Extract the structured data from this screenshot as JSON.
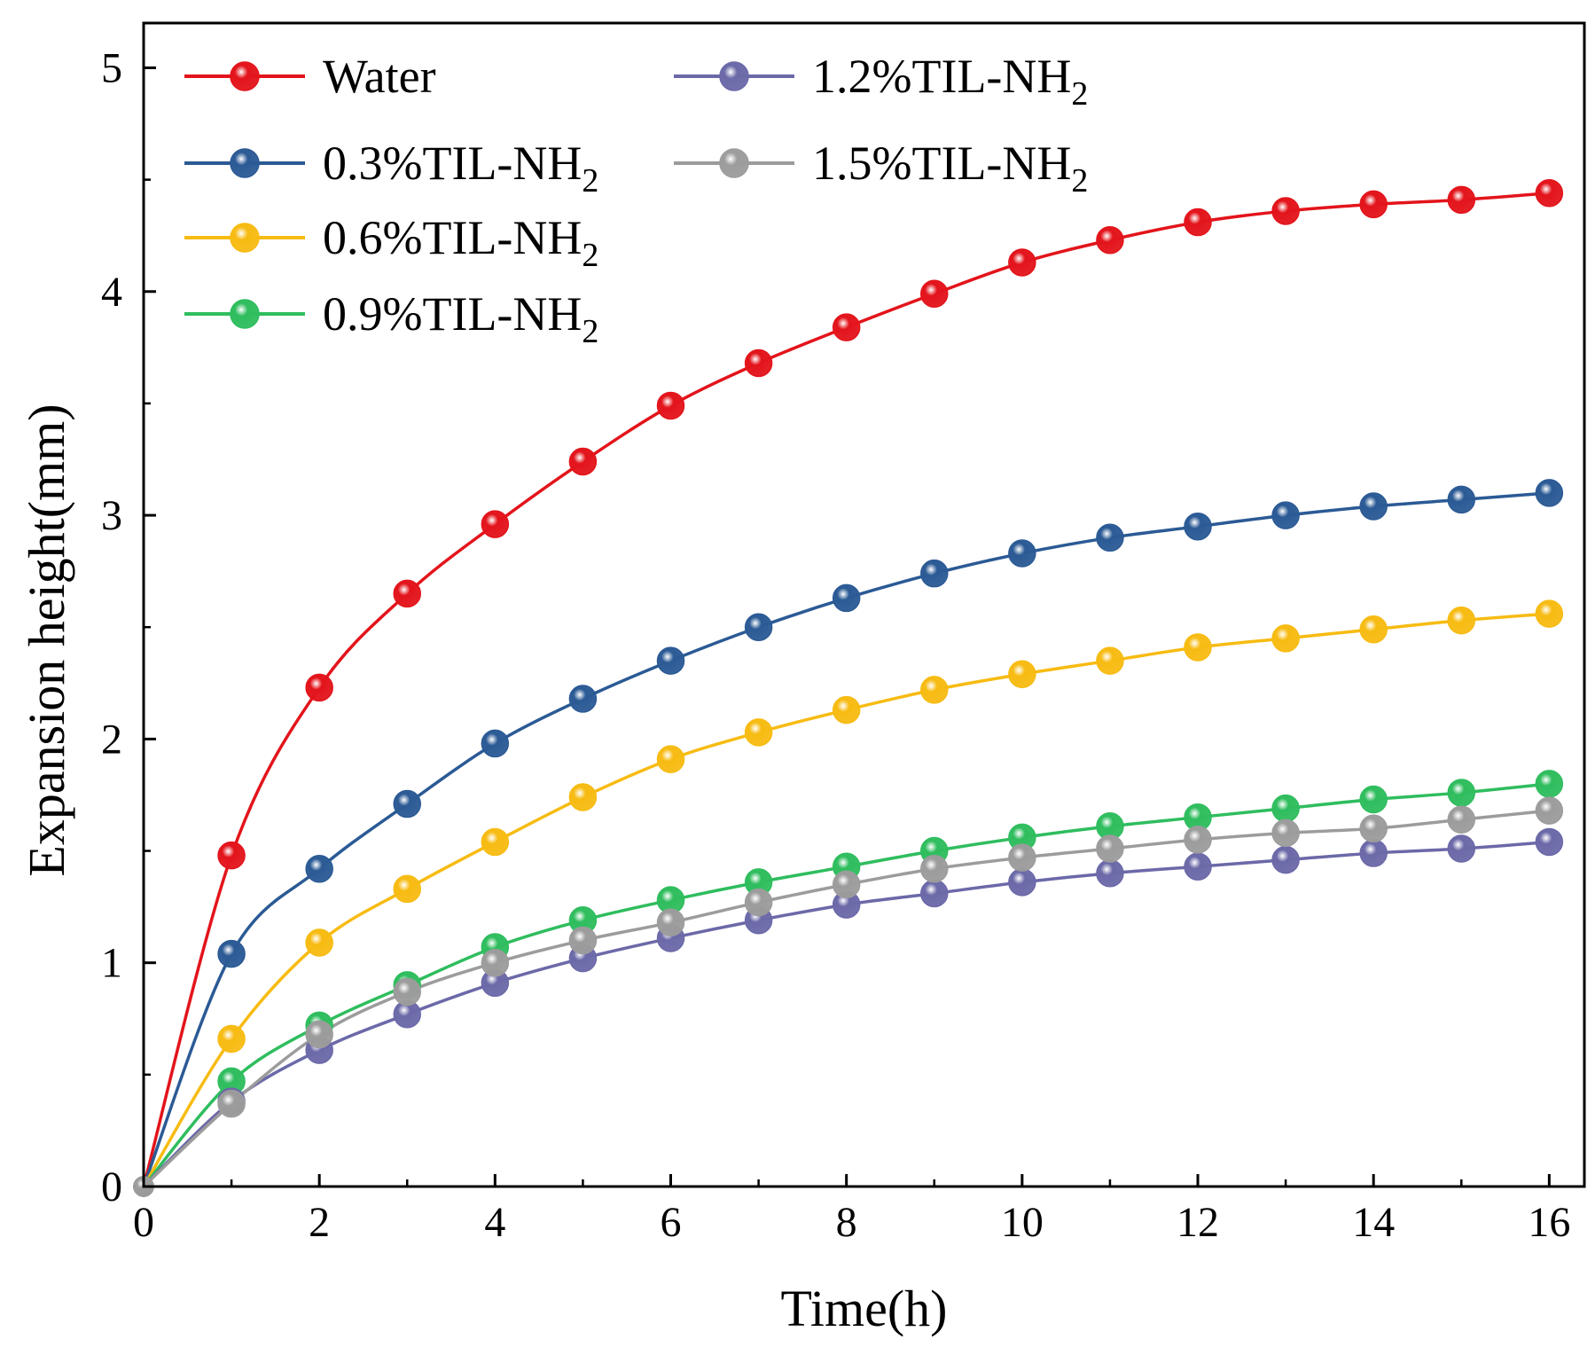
{
  "chart_data": {
    "type": "line",
    "title": "",
    "xlabel": "Time(h)",
    "ylabel": "Expansion height(mm)",
    "xlim": [
      0,
      16.4
    ],
    "ylim": [
      0,
      5.2
    ],
    "xticks": [
      0,
      2,
      4,
      6,
      8,
      10,
      12,
      14,
      16
    ],
    "yticks": [
      0,
      1,
      2,
      3,
      4,
      5
    ],
    "x": [
      0,
      1,
      2,
      3,
      4,
      5,
      6,
      7,
      8,
      9,
      10,
      11,
      12,
      13,
      14,
      15,
      16
    ],
    "legend_position": "top-left",
    "series": [
      {
        "name": "Water",
        "legend_main": "Water",
        "legend_sub": "",
        "color": "#e3141b",
        "values": [
          0,
          1.48,
          2.23,
          2.65,
          2.96,
          3.24,
          3.49,
          3.68,
          3.84,
          3.99,
          4.13,
          4.23,
          4.31,
          4.36,
          4.39,
          4.41,
          4.44
        ]
      },
      {
        "name": "0.3%TIL-NH2",
        "legend_main": "0.3%TIL-NH",
        "legend_sub": "2",
        "color": "#2b5a95",
        "values": [
          0,
          1.04,
          1.42,
          1.71,
          1.98,
          2.18,
          2.35,
          2.5,
          2.63,
          2.74,
          2.83,
          2.9,
          2.95,
          3.0,
          3.04,
          3.07,
          3.1
        ]
      },
      {
        "name": "0.6%TIL-NH2",
        "legend_main": "0.6%TIL-NH",
        "legend_sub": "2",
        "color": "#f7bb12",
        "values": [
          0,
          0.66,
          1.09,
          1.33,
          1.54,
          1.74,
          1.91,
          2.03,
          2.13,
          2.22,
          2.29,
          2.35,
          2.41,
          2.45,
          2.49,
          2.53,
          2.56
        ]
      },
      {
        "name": "0.9%TIL-NH2",
        "legend_main": "0.9%TIL-NH",
        "legend_sub": "2",
        "color": "#2fbd5e",
        "values": [
          0,
          0.47,
          0.72,
          0.9,
          1.07,
          1.19,
          1.28,
          1.36,
          1.43,
          1.5,
          1.56,
          1.61,
          1.65,
          1.69,
          1.73,
          1.76,
          1.8
        ]
      },
      {
        "name": "1.2%TIL-NH2",
        "legend_main": "1.2%TIL-NH",
        "legend_sub": "2",
        "color": "#6b69a8",
        "values": [
          0,
          0.38,
          0.61,
          0.77,
          0.91,
          1.02,
          1.11,
          1.19,
          1.26,
          1.31,
          1.36,
          1.4,
          1.43,
          1.46,
          1.49,
          1.51,
          1.54
        ]
      },
      {
        "name": "1.5%TIL-NH2",
        "legend_main": "1.5%TIL-NH",
        "legend_sub": "2",
        "color": "#9c9c9c",
        "values": [
          0,
          0.37,
          0.68,
          0.87,
          1.0,
          1.1,
          1.18,
          1.27,
          1.35,
          1.42,
          1.47,
          1.51,
          1.55,
          1.58,
          1.6,
          1.64,
          1.68
        ]
      }
    ]
  }
}
